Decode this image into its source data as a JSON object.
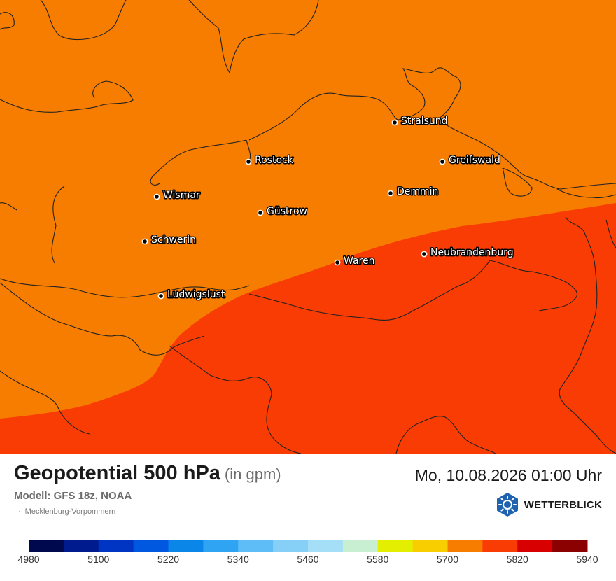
{
  "map": {
    "region_name": "Mecklenburg-Vorpommern",
    "colors": {
      "lower_band": "#f77d00",
      "upper_band": "#f93c03",
      "border": "#222222"
    },
    "cities": [
      {
        "name": "Stralsund",
        "slug": "stralsund"
      },
      {
        "name": "Rostock",
        "slug": "rostock"
      },
      {
        "name": "Greifswald",
        "slug": "greifswald"
      },
      {
        "name": "Wismar",
        "slug": "wismar"
      },
      {
        "name": "Demmin",
        "slug": "demmin"
      },
      {
        "name": "Güstrow",
        "slug": "guestrow"
      },
      {
        "name": "Schwerin",
        "slug": "schwerin"
      },
      {
        "name": "Neubrandenburg",
        "slug": "neubrandenburg"
      },
      {
        "name": "Waren",
        "slug": "waren"
      },
      {
        "name": "Ludwigslust",
        "slug": "ludwigslust"
      }
    ]
  },
  "header": {
    "title": "Geopotential 500 hPa",
    "unit": "(in gpm)",
    "model": "Modell: GFS 18z, NOAA",
    "region": "Mecklenburg-Vorpommern",
    "datetime": "Mo, 10.08.2026 01:00 Uhr",
    "brand": "WETTERBLICK",
    "brand_icon": "sun-icon"
  },
  "legend": {
    "colors": [
      "#00084e",
      "#001b8e",
      "#0035c4",
      "#0057e0",
      "#0a86e8",
      "#2ea4f2",
      "#5ebdf7",
      "#86d0f8",
      "#a5def7",
      "#c8efd2",
      "#e3ee00",
      "#f9ce00",
      "#f77d00",
      "#f93c03",
      "#d80000",
      "#8b0000"
    ],
    "labels": [
      "4980",
      "5100",
      "5220",
      "5340",
      "5460",
      "5580",
      "5700",
      "5820",
      "5940"
    ]
  }
}
